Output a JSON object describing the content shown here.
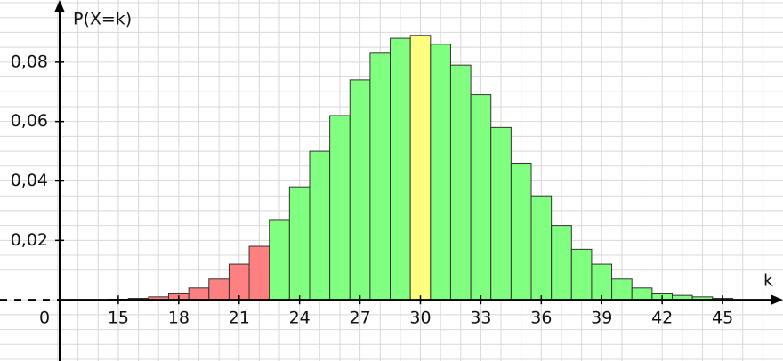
{
  "chart_data": {
    "type": "bar",
    "ylabel": "P(X=k)",
    "xlabel": "k",
    "origin_label": "0",
    "x": [
      13,
      14,
      15,
      16,
      17,
      18,
      19,
      20,
      21,
      22,
      23,
      24,
      25,
      26,
      27,
      28,
      29,
      30,
      31,
      32,
      33,
      34,
      35,
      36,
      37,
      38,
      39,
      40,
      41,
      42,
      43,
      44,
      45
    ],
    "values": [
      0.0001,
      0.0001,
      0.0002,
      0.0005,
      0.001,
      0.002,
      0.004,
      0.007,
      0.012,
      0.018,
      0.027,
      0.038,
      0.05,
      0.062,
      0.074,
      0.083,
      0.088,
      0.089,
      0.086,
      0.079,
      0.069,
      0.058,
      0.046,
      0.035,
      0.025,
      0.017,
      0.012,
      0.007,
      0.004,
      0.002,
      0.0015,
      0.001,
      0.0005
    ],
    "colors": [
      "#ff8080",
      "#ff8080",
      "#ff8080",
      "#ff8080",
      "#ff8080",
      "#ff8080",
      "#ff8080",
      "#ff8080",
      "#ff8080",
      "#ff8080",
      "#80ff80",
      "#80ff80",
      "#80ff80",
      "#80ff80",
      "#80ff80",
      "#80ff80",
      "#80ff80",
      "#ffff80",
      "#80ff80",
      "#80ff80",
      "#80ff80",
      "#80ff80",
      "#80ff80",
      "#80ff80",
      "#80ff80",
      "#80ff80",
      "#80ff80",
      "#80ff80",
      "#80ff80",
      "#80ff80",
      "#80ff80",
      "#80ff80",
      "#80ff80"
    ],
    "xlim": [
      12,
      48
    ],
    "ylim": [
      -0.02,
      0.1
    ],
    "xticks": [
      15,
      18,
      21,
      24,
      27,
      30,
      33,
      36,
      39,
      42,
      45
    ],
    "yticks": [
      {
        "value": 0.02,
        "label": "0,02"
      },
      {
        "value": 0.04,
        "label": "0,04"
      },
      {
        "value": 0.06,
        "label": "0,06"
      },
      {
        "value": 0.08,
        "label": "0,08"
      }
    ],
    "grid": true
  }
}
